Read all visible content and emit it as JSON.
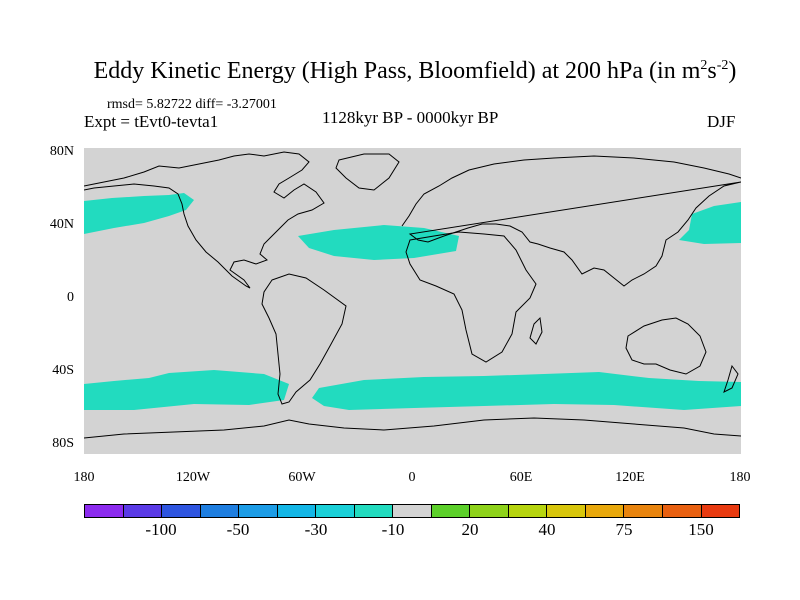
{
  "title": {
    "main": "Eddy Kinetic Energy (High Pass, Bloomfield) at 200 hPa (in m",
    "sup1": "2",
    "mid": "s",
    "sup2": "-2",
    "end": ")"
  },
  "stats": "rmsd= 5.82722 diff= -3.27001",
  "experiment": "Expt = tEvt0-tevta1",
  "period": "1128kyr BP - 0000kyr BP",
  "season": "DJF",
  "lat_labels": [
    "80N",
    "40N",
    "0",
    "40S",
    "80S"
  ],
  "lon_labels": [
    "180",
    "120W",
    "60W",
    "0",
    "60E",
    "120E",
    "180"
  ],
  "colors": {
    "background": "#d3d3d3",
    "anomaly": "#22dbbf",
    "coast": "#000000"
  },
  "colorbar": {
    "colors": [
      "#8c2bef",
      "#5a3ae6",
      "#2e55e0",
      "#1e7ee0",
      "#1c9ce6",
      "#13b6e6",
      "#1ad0d8",
      "#22dbbf",
      "#d3d3d3",
      "#5cd02a",
      "#8ed21a",
      "#b6d40f",
      "#d8c60c",
      "#e8a80c",
      "#e8840e",
      "#e86010",
      "#e83a10"
    ],
    "labels": [
      "-100",
      "-50",
      "-30",
      "-10",
      "20",
      "40",
      "75",
      "150"
    ]
  },
  "chart_data": {
    "type": "map",
    "variable": "Eddy Kinetic Energy difference",
    "units": "m2 s-2",
    "level_hPa": 200,
    "shaded_category": "-10 to -20 (teal)",
    "regions": [
      {
        "name": "North Pacific (east)",
        "lon_range": [
          -180,
          -125
        ],
        "lat_range": [
          32,
          45
        ]
      },
      {
        "name": "North Atlantic (subtropical)",
        "lon_range": [
          -55,
          10
        ],
        "lat_range": [
          18,
          32
        ]
      },
      {
        "name": "West Pacific off Japan",
        "lon_range": [
          140,
          180
        ],
        "lat_range": [
          26,
          46
        ]
      },
      {
        "name": "Southern Ocean (Pacific)",
        "lon_range": [
          -180,
          -70
        ],
        "lat_range": [
          -57,
          -42
        ]
      },
      {
        "name": "Southern Ocean (Atlantic-Indian)",
        "lon_range": [
          -50,
          180
        ],
        "lat_range": [
          -57,
          -44
        ]
      }
    ],
    "lat_range": [
      -90,
      90
    ],
    "lon_range": [
      -180,
      180
    ]
  }
}
